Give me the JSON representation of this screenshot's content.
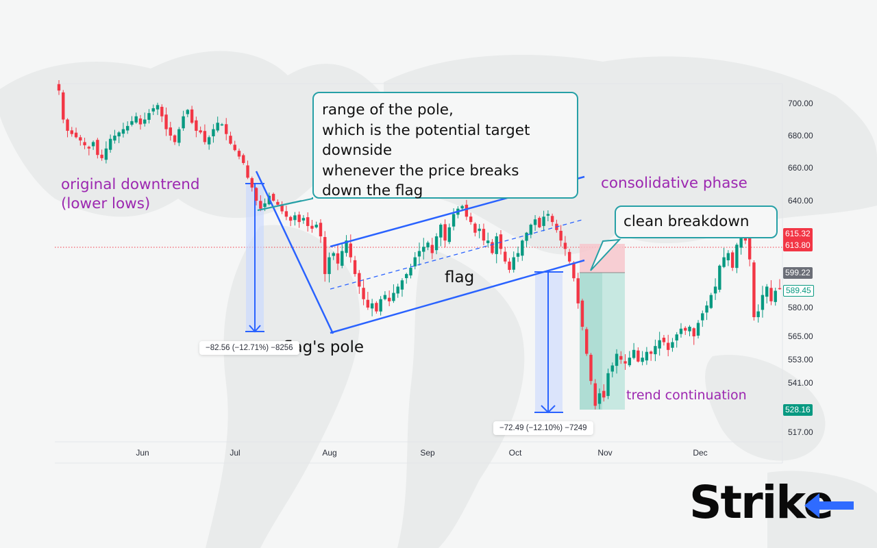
{
  "chart_data": {
    "type": "candlestick",
    "title": "",
    "xlabel": "",
    "ylabel": "",
    "y_axis_ticks": [
      700.0,
      680.0,
      660.0,
      640.0,
      580.0,
      565.0,
      553.0,
      541.0,
      517.0
    ],
    "x_axis_ticks": [
      "Jun",
      "Jul",
      "Aug",
      "Sep",
      "Oct",
      "Nov",
      "Dec"
    ],
    "price_labels": [
      {
        "value": "615.32",
        "color": "#f23645"
      },
      {
        "value": "613.80",
        "color": "#f23645"
      },
      {
        "value": "599.22",
        "color": "#6b6e77"
      },
      {
        "value": "589.45",
        "color": "#089981",
        "outline": true
      },
      {
        "value": "528.16",
        "color": "#089981"
      }
    ],
    "measurements": [
      {
        "text": "−82.56 (−12.71%) −8256",
        "label": "pole range"
      },
      {
        "text": "−72.49 (−12.10%) −7249",
        "label": "projected target"
      }
    ],
    "annotations": [
      "original downtrend (lower lows)",
      "flag's pole",
      "flag",
      "consolidative phase",
      "clean breakdown",
      "trend continuation"
    ],
    "ylim": [
      510,
      715
    ],
    "approx_series_close": [
      708,
      690,
      683,
      681,
      679,
      677,
      674,
      672,
      676,
      668,
      666,
      672,
      678,
      680,
      682,
      684,
      686,
      689,
      692,
      687,
      690,
      694,
      697,
      699,
      692,
      684,
      680,
      676,
      684,
      692,
      696,
      688,
      683,
      682,
      676,
      679,
      684,
      688,
      687,
      681,
      675,
      671,
      667,
      663,
      654,
      648,
      640,
      634,
      638,
      643,
      640,
      637,
      632,
      628,
      625,
      629,
      624,
      627,
      621,
      619,
      622,
      614,
      596,
      604,
      606,
      601,
      607,
      612,
      604,
      596,
      590,
      584,
      580,
      582,
      578,
      584,
      586,
      583,
      587,
      590,
      593,
      596,
      599,
      604,
      607,
      609,
      611,
      606,
      614,
      622,
      612,
      620,
      630,
      634,
      636,
      628,
      624,
      616,
      619,
      612,
      612,
      606,
      614,
      608,
      602,
      598,
      604,
      606,
      612,
      616,
      622,
      626,
      620,
      628,
      630,
      624,
      618,
      612,
      608,
      602,
      594,
      582,
      570,
      556,
      542,
      530,
      536,
      534,
      546,
      550,
      556,
      553,
      551,
      554,
      558,
      552,
      554,
      557,
      556,
      560,
      563,
      562,
      558,
      562,
      566,
      569,
      568,
      570,
      565,
      572,
      577,
      581,
      586,
      590,
      600,
      604,
      606,
      599,
      610,
      615,
      612,
      603,
      575,
      578,
      586,
      590,
      583,
      588,
      589
    ]
  },
  "axis": {
    "y_labels": [
      "700.00",
      "680.00",
      "660.00",
      "640.00",
      "580.00",
      "565.00",
      "553.00",
      "541.00",
      "517.00"
    ],
    "x_labels": [
      "Jun",
      "Jul",
      "Aug",
      "Sep",
      "Oct",
      "Nov",
      "Dec"
    ]
  },
  "callouts": {
    "pole_range": {
      "lines": [
        "range of the pole,",
        "which is the potential target",
        "downside",
        "whenever the price breaks",
        "down the flag"
      ]
    },
    "breakdown": {
      "text": "clean breakdown"
    }
  },
  "labels": {
    "original_downtrend_1": "original downtrend",
    "original_downtrend_2": "(lower lows)",
    "flags_pole": "flag's pole",
    "flag": "flag",
    "consolidative": "consolidative phase",
    "trend_continuation": "trend continuation"
  },
  "measures": {
    "pole": "−82.56 (−12.71%) −8256",
    "target": "−72.49 (−12.10%) −7249"
  },
  "price_tags": {
    "p1": "615.32",
    "p2": "613.80",
    "p3": "599.22",
    "p4": "589.45",
    "p5": "528.16"
  },
  "brand": {
    "logo_text": "Stri",
    "logo_k": "k",
    "logo_e": "e",
    "accent": "#2f6bff"
  },
  "colors": {
    "up": "#089981",
    "down": "#f23645",
    "trend": "#2962ff",
    "callout_border": "#26a0a6",
    "annotation": "#9c27b0"
  }
}
